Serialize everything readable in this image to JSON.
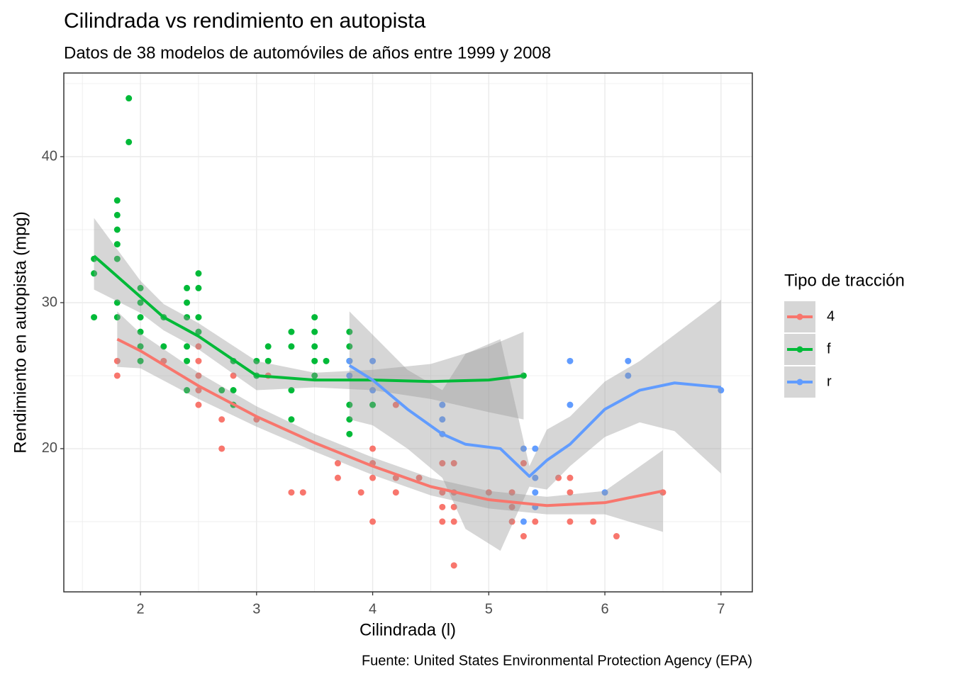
{
  "chart_data": {
    "type": "scatter",
    "title": "Cilindrada vs rendimiento en autopista",
    "subtitle": "Datos de 38 modelos de automóviles de años entre 1999 y 2008",
    "caption": "Fuente: United States Environmental Protection Agency (EPA)",
    "x_label": "Cilindrada (l)",
    "y_label": "Rendimiento en autopista (mpg)",
    "legend_title": "Tipo de tracción",
    "legend": "right",
    "grid": true,
    "band_color": "#999999",
    "xlim": [
      1.34,
      7.27
    ],
    "xticks": [
      2,
      3,
      4,
      5,
      6,
      7
    ],
    "ylim": [
      10.19,
      45.73
    ],
    "yticks": [
      20,
      30,
      40
    ],
    "series": [
      {
        "name": "4",
        "color": "#f8766d",
        "x": [
          1.8,
          1.8,
          2.2,
          2.5,
          2.5,
          2.5,
          2.5,
          2.5,
          2.7,
          2.7,
          2.8,
          3.0,
          3.1,
          3.3,
          3.4,
          3.7,
          3.7,
          3.9,
          4.0,
          4.0,
          4.0,
          4.0,
          4.2,
          4.2,
          4.2,
          4.4,
          4.6,
          4.6,
          4.6,
          4.6,
          4.7,
          4.7,
          4.7,
          4.7,
          4.7,
          5.0,
          5.2,
          5.2,
          5.2,
          5.3,
          5.3,
          5.4,
          5.6,
          5.7,
          5.7,
          5.7,
          5.9,
          6.1,
          6.5
        ],
        "values": [
          26,
          25,
          26,
          27,
          26,
          25,
          24,
          23,
          22,
          20,
          25,
          22,
          25,
          17,
          17,
          19,
          18,
          17,
          20,
          19,
          18,
          15,
          23,
          18,
          17,
          18,
          19,
          17,
          16,
          15,
          19,
          17,
          16,
          15,
          12,
          17,
          17,
          16,
          15,
          19,
          14,
          15,
          18,
          18,
          17,
          15,
          15,
          14,
          17
        ],
        "smooth": {
          "x": [
            1.8,
            2.0,
            2.5,
            3.0,
            3.5,
            4.0,
            4.5,
            5.0,
            5.5,
            6.0,
            6.5
          ],
          "values": [
            27.5,
            26.7,
            24.3,
            22.2,
            20.4,
            18.8,
            17.4,
            16.5,
            16.1,
            16.3,
            17.1
          ],
          "lower": [
            25.6,
            25.5,
            23.4,
            21.5,
            19.8,
            18.2,
            16.8,
            15.9,
            15.5,
            15.5,
            14.3
          ],
          "upper": [
            29.4,
            27.9,
            25.2,
            22.9,
            21.0,
            19.4,
            18.0,
            17.1,
            16.7,
            17.1,
            19.9
          ]
        }
      },
      {
        "name": "f",
        "color": "#00ba38",
        "x": [
          1.6,
          1.6,
          1.6,
          1.8,
          1.8,
          1.8,
          1.8,
          1.8,
          1.8,
          1.8,
          1.9,
          1.9,
          2.0,
          2.0,
          2.0,
          2.0,
          2.0,
          2.0,
          2.2,
          2.2,
          2.4,
          2.4,
          2.4,
          2.4,
          2.4,
          2.4,
          2.5,
          2.5,
          2.5,
          2.5,
          2.7,
          2.8,
          2.8,
          2.8,
          3.0,
          3.0,
          3.1,
          3.1,
          3.3,
          3.3,
          3.3,
          3.3,
          3.5,
          3.5,
          3.5,
          3.5,
          3.5,
          3.6,
          3.8,
          3.8,
          3.8,
          3.8,
          3.8,
          3.8,
          4.0,
          5.3
        ],
        "values": [
          33,
          32,
          29,
          37,
          36,
          35,
          34,
          33,
          30,
          29,
          44,
          41,
          31,
          30,
          29,
          28,
          27,
          26,
          29,
          27,
          31,
          30,
          29,
          27,
          26,
          24,
          32,
          31,
          29,
          28,
          24,
          26,
          24,
          23,
          26,
          25,
          27,
          26,
          28,
          27,
          24,
          22,
          29,
          28,
          27,
          26,
          25,
          26,
          28,
          27,
          26,
          23,
          22,
          21,
          23,
          25
        ],
        "smooth": {
          "x": [
            1.6,
            2.0,
            2.2,
            2.5,
            3.0,
            3.5,
            4.0,
            4.5,
            5.0,
            5.3
          ],
          "values": [
            33.2,
            30.4,
            29.0,
            27.7,
            25.0,
            24.7,
            24.7,
            24.6,
            24.7,
            25.0
          ],
          "lower": [
            30.9,
            29.3,
            28.1,
            26.8,
            24.0,
            24.2,
            24.0,
            23.4,
            22.5,
            22.0
          ],
          "upper": [
            35.8,
            31.5,
            29.9,
            28.6,
            26.0,
            25.2,
            25.4,
            25.8,
            27.0,
            28.0
          ]
        }
      },
      {
        "name": "r",
        "color": "#619cff",
        "x": [
          3.8,
          3.8,
          4.0,
          4.0,
          4.6,
          4.6,
          4.6,
          5.3,
          5.3,
          5.4,
          5.4,
          5.4,
          5.4,
          5.7,
          5.7,
          6.0,
          6.2,
          6.2,
          7.0
        ],
        "values": [
          26,
          25,
          26,
          24,
          23,
          22,
          21,
          20,
          15,
          20,
          18,
          17,
          16,
          26,
          23,
          17,
          26,
          25,
          24
        ],
        "smooth": {
          "x": [
            3.8,
            4.0,
            4.3,
            4.6,
            4.8,
            5.1,
            5.35,
            5.5,
            5.7,
            6.0,
            6.3,
            6.6,
            7.0
          ],
          "values": [
            25.7,
            24.7,
            22.7,
            21.0,
            20.3,
            20.0,
            18.1,
            19.2,
            20.3,
            22.7,
            24.0,
            24.5,
            24.2
          ],
          "lower": [
            22.0,
            21.6,
            20.0,
            18.0,
            14.5,
            13.0,
            17.4,
            17.2,
            18.8,
            20.8,
            21.8,
            21.2,
            18.3
          ],
          "upper": [
            29.4,
            27.8,
            25.4,
            24.0,
            26.5,
            27.5,
            18.8,
            21.3,
            22.2,
            24.6,
            26.0,
            27.8,
            30.2
          ]
        }
      }
    ]
  }
}
